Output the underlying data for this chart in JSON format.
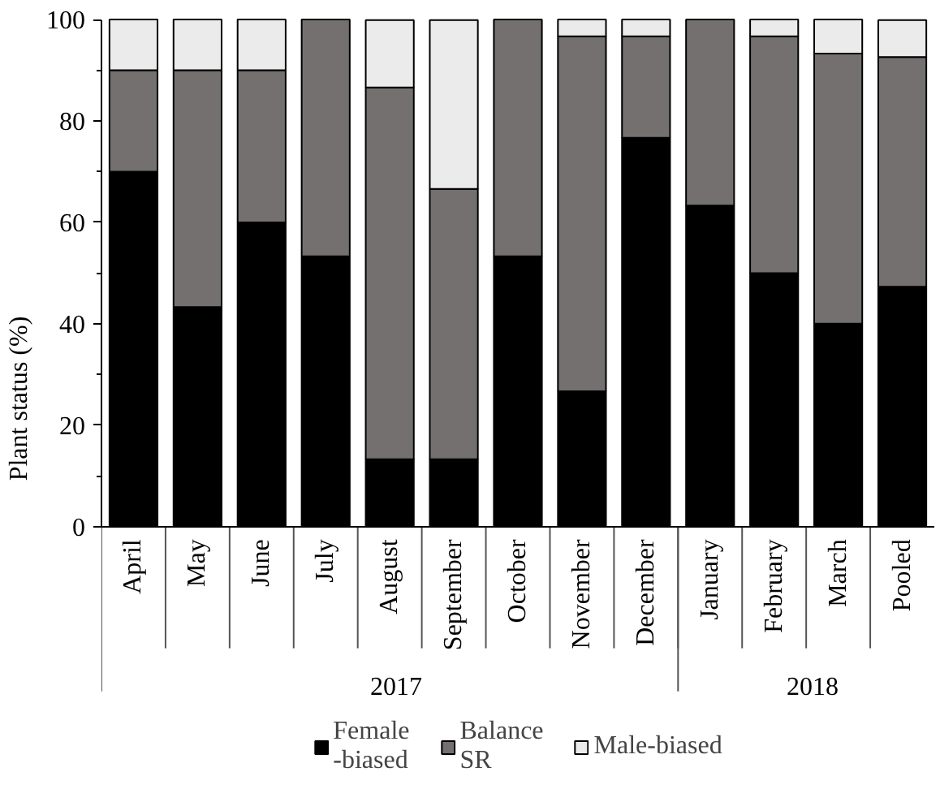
{
  "chart_data": {
    "type": "bar",
    "stacked": true,
    "ylabel": "Plant status (%)",
    "categories": [
      "April",
      "May",
      "June",
      "July",
      "August",
      "September",
      "October",
      "November",
      "December",
      "January",
      "February",
      "March",
      "Pooled"
    ],
    "series": [
      {
        "name": "Female\n-biased",
        "color": "#000000",
        "values": [
          70,
          43.3,
          60,
          53.3,
          13.3,
          13.3,
          53.3,
          26.7,
          76.7,
          63.3,
          50,
          40,
          47.3
        ]
      },
      {
        "name": "Balance\nSR",
        "color": "#757070",
        "values": [
          20,
          46.7,
          30,
          46.7,
          73.3,
          53.3,
          46.7,
          70,
          20,
          36.7,
          46.7,
          53.3,
          45.3
        ]
      },
      {
        "name": "Male-biased",
        "color": "#ebebeb",
        "values": [
          10,
          10,
          10,
          0,
          13.3,
          33.3,
          0,
          3.3,
          3.3,
          0,
          3.3,
          6.7,
          7.3
        ]
      }
    ],
    "ylim": [
      0,
      100
    ],
    "yticks": [
      0,
      20,
      40,
      60,
      80,
      100
    ],
    "grid": false,
    "legend": "bottom",
    "annotations": [
      "2017",
      "2018"
    ]
  }
}
